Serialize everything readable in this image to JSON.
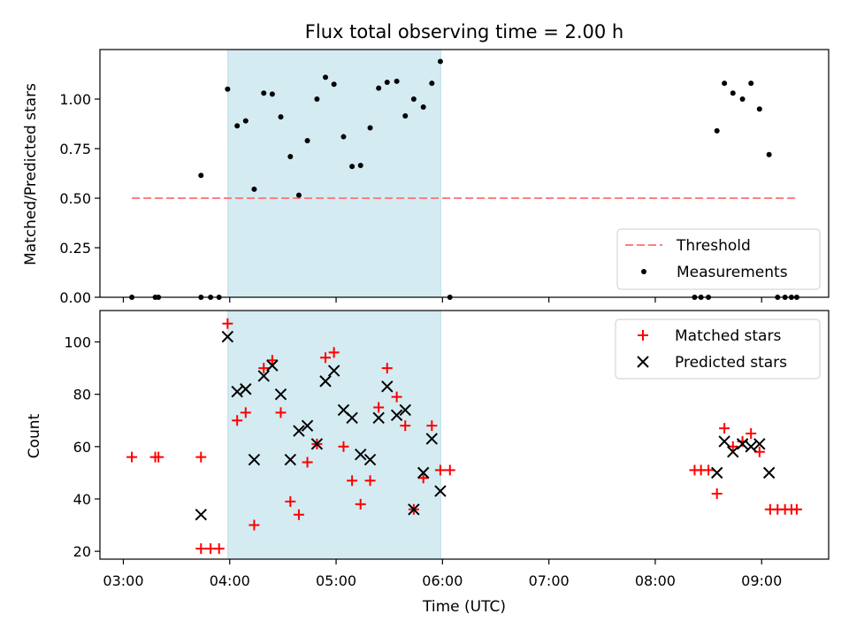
{
  "chart_data": {
    "title": "Flux total observing time = 2.00 h",
    "xlabel": "Time (UTC)",
    "x_tick_labels": [
      "03:00",
      "04:00",
      "05:00",
      "06:00",
      "07:00",
      "08:00",
      "09:00"
    ],
    "x_tick_hours": [
      3,
      4,
      5,
      6,
      7,
      8,
      9
    ],
    "xlim": [
      2.78,
      9.63
    ],
    "highlight_span": [
      3.983,
      5.983
    ],
    "highlight_color": "#d4ebf2",
    "panels": [
      {
        "type": "scatter",
        "ylabel": "Matched/Predicted stars",
        "ylim": [
          0,
          1.25
        ],
        "y_ticks": [
          0,
          0.25,
          0.5,
          0.75,
          1.0
        ],
        "y_tick_labels": [
          "0.00",
          "0.25",
          "0.50",
          "0.75",
          "1.00"
        ],
        "legend_position": "lower-right",
        "threshold": {
          "name": "Threshold",
          "y": 0.5,
          "x_range": [
            3.08,
            9.33
          ],
          "color": "#ff7f7f"
        },
        "series": [
          {
            "name": "Measurements",
            "marker": "dot",
            "color": "#000000",
            "points": [
              [
                3.08,
                0.0
              ],
              [
                3.3,
                0.0
              ],
              [
                3.33,
                0.0
              ],
              [
                3.73,
                0.0
              ],
              [
                3.82,
                0.0
              ],
              [
                3.9,
                0.0
              ],
              [
                3.73,
                0.615
              ],
              [
                3.98,
                1.05
              ],
              [
                4.07,
                0.865
              ],
              [
                4.15,
                0.89
              ],
              [
                4.23,
                0.545
              ],
              [
                4.32,
                1.03
              ],
              [
                4.4,
                1.025
              ],
              [
                4.48,
                0.91
              ],
              [
                4.57,
                0.71
              ],
              [
                4.65,
                0.515
              ],
              [
                4.73,
                0.79
              ],
              [
                4.82,
                1.0
              ],
              [
                4.9,
                1.11
              ],
              [
                4.98,
                1.075
              ],
              [
                5.07,
                0.81
              ],
              [
                5.15,
                0.66
              ],
              [
                5.23,
                0.665
              ],
              [
                5.32,
                0.855
              ],
              [
                5.4,
                1.055
              ],
              [
                5.48,
                1.085
              ],
              [
                5.57,
                1.09
              ],
              [
                5.65,
                0.915
              ],
              [
                5.73,
                1.0
              ],
              [
                5.82,
                0.96
              ],
              [
                5.9,
                1.08
              ],
              [
                5.98,
                1.19
              ],
              [
                6.07,
                0.0
              ],
              [
                8.37,
                0.0
              ],
              [
                8.43,
                0.0
              ],
              [
                8.5,
                0.0
              ],
              [
                8.58,
                0.84
              ],
              [
                8.65,
                1.08
              ],
              [
                8.73,
                1.03
              ],
              [
                8.82,
                1.0
              ],
              [
                8.9,
                1.08
              ],
              [
                8.98,
                0.95
              ],
              [
                9.07,
                0.72
              ],
              [
                9.15,
                0.0
              ],
              [
                9.22,
                0.0
              ],
              [
                9.28,
                0.0
              ],
              [
                9.33,
                0.0
              ]
            ]
          }
        ]
      },
      {
        "type": "scatter",
        "ylabel": "Count",
        "ylim": [
          17,
          112
        ],
        "y_ticks": [
          20,
          40,
          60,
          80,
          100
        ],
        "y_tick_labels": [
          "20",
          "40",
          "60",
          "80",
          "100"
        ],
        "legend_position": "upper-right",
        "series": [
          {
            "name": "Matched stars",
            "marker": "plus",
            "color": "#ff0000",
            "points": [
              [
                3.08,
                56
              ],
              [
                3.3,
                56
              ],
              [
                3.33,
                56
              ],
              [
                3.73,
                56
              ],
              [
                3.73,
                21
              ],
              [
                3.82,
                21
              ],
              [
                3.9,
                21
              ],
              [
                3.98,
                107
              ],
              [
                4.07,
                70
              ],
              [
                4.15,
                73
              ],
              [
                4.23,
                30
              ],
              [
                4.32,
                90
              ],
              [
                4.4,
                93
              ],
              [
                4.48,
                73
              ],
              [
                4.57,
                39
              ],
              [
                4.65,
                34
              ],
              [
                4.73,
                54
              ],
              [
                4.82,
                61
              ],
              [
                4.9,
                94
              ],
              [
                4.98,
                96
              ],
              [
                5.07,
                60
              ],
              [
                5.15,
                47
              ],
              [
                5.23,
                38
              ],
              [
                5.32,
                47
              ],
              [
                5.4,
                75
              ],
              [
                5.48,
                90
              ],
              [
                5.57,
                79
              ],
              [
                5.65,
                68
              ],
              [
                5.73,
                36
              ],
              [
                5.82,
                48
              ],
              [
                5.9,
                68
              ],
              [
                5.98,
                51
              ],
              [
                6.07,
                51
              ],
              [
                8.37,
                51
              ],
              [
                8.43,
                51
              ],
              [
                8.5,
                51
              ],
              [
                8.58,
                42
              ],
              [
                8.65,
                67
              ],
              [
                8.73,
                60
              ],
              [
                8.82,
                62
              ],
              [
                8.9,
                65
              ],
              [
                8.98,
                58
              ],
              [
                9.08,
                36
              ],
              [
                9.15,
                36
              ],
              [
                9.22,
                36
              ],
              [
                9.28,
                36
              ],
              [
                9.33,
                36
              ]
            ]
          },
          {
            "name": "Predicted stars",
            "marker": "x",
            "color": "#000000",
            "points": [
              [
                3.73,
                34
              ],
              [
                3.98,
                102
              ],
              [
                4.07,
                81
              ],
              [
                4.15,
                82
              ],
              [
                4.23,
                55
              ],
              [
                4.32,
                87
              ],
              [
                4.4,
                91
              ],
              [
                4.48,
                80
              ],
              [
                4.57,
                55
              ],
              [
                4.65,
                66
              ],
              [
                4.73,
                68
              ],
              [
                4.82,
                61
              ],
              [
                4.9,
                85
              ],
              [
                4.98,
                89
              ],
              [
                5.07,
                74
              ],
              [
                5.15,
                71
              ],
              [
                5.23,
                57
              ],
              [
                5.32,
                55
              ],
              [
                5.4,
                71
              ],
              [
                5.48,
                83
              ],
              [
                5.57,
                72
              ],
              [
                5.65,
                74
              ],
              [
                5.73,
                36
              ],
              [
                5.82,
                50
              ],
              [
                5.9,
                63
              ],
              [
                5.98,
                43
              ],
              [
                8.58,
                50
              ],
              [
                8.65,
                62
              ],
              [
                8.73,
                58
              ],
              [
                8.82,
                61
              ],
              [
                8.9,
                60
              ],
              [
                8.98,
                61
              ],
              [
                9.07,
                50
              ]
            ]
          }
        ]
      }
    ]
  }
}
